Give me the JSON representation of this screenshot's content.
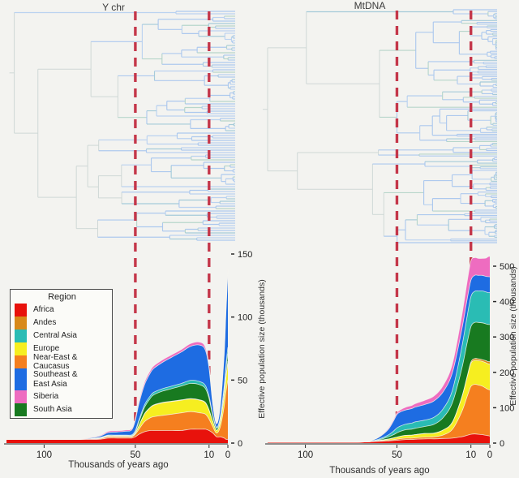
{
  "figure": {
    "panels": [
      {
        "title": "Y chr"
      },
      {
        "title": "MtDNA"
      }
    ]
  },
  "legend": {
    "title": "Region",
    "items": [
      {
        "label": "Africa",
        "color": "#e8120c"
      },
      {
        "label": "Andes",
        "color": "#d8891a"
      },
      {
        "label": "Central Asia",
        "color": "#2abcb4"
      },
      {
        "label": "Europe",
        "color": "#f6ee20"
      },
      {
        "label": "Near-East & Caucasus",
        "color": "#f57f1f"
      },
      {
        "label": "Southeast &\nEast Asia",
        "color": "#1e6ce2"
      },
      {
        "label": "Siberia",
        "color": "#ee6cc0"
      },
      {
        "label": "South Asia",
        "color": "#187a20"
      }
    ]
  },
  "annotations": {
    "dashed_lines_kya": [
      50,
      10
    ],
    "dashed_line_color": "#c4374a"
  },
  "tree_style": {
    "branch_colors": [
      "#a8c6ee",
      "#b6d0f0",
      "#a0c8d8",
      "#b2d4c8"
    ],
    "deep_branch_color": "#ccd6d4"
  },
  "chart_data": [
    {
      "type": "area",
      "title": "Y chr",
      "xlabel": "Thousands of years ago",
      "ylabel": "Effective population size (thousands)",
      "x_axis_reversed": true,
      "xlim": [
        140,
        0
      ],
      "ylim": [
        0,
        150
      ],
      "xticks": [
        100,
        50,
        10,
        0
      ],
      "yticks": [
        0,
        50,
        100,
        150
      ],
      "x": [
        140,
        120,
        100,
        90,
        80,
        70,
        65,
        60,
        55,
        52,
        50,
        48,
        45,
        42,
        40,
        35,
        30,
        25,
        20,
        15,
        12,
        10,
        8,
        6,
        4,
        2,
        1,
        0
      ],
      "series": [
        {
          "name": "Africa",
          "values": [
            3,
            3,
            3,
            3,
            3,
            3,
            4,
            4,
            4,
            4,
            5,
            7,
            9,
            10,
            10,
            10,
            10,
            10,
            11,
            11,
            11,
            10,
            8,
            5,
            5,
            4,
            3,
            3
          ]
        },
        {
          "name": "Near-East & Caucasus",
          "values": [
            0,
            0,
            0,
            0,
            0,
            0.5,
            1,
            1,
            1,
            1,
            2,
            4,
            8,
            10,
            11,
            12,
            13,
            14,
            14,
            13,
            12,
            9,
            5,
            3,
            8,
            25,
            38,
            47
          ]
        },
        {
          "name": "Europe",
          "values": [
            0,
            0,
            0,
            0,
            0,
            0.3,
            0.5,
            0.5,
            0.5,
            0.5,
            1,
            3,
            6,
            8,
            9,
            10,
            10,
            10,
            10,
            10,
            9,
            7,
            4,
            2,
            4,
            8,
            11,
            13
          ]
        },
        {
          "name": "Andes",
          "values": [
            0,
            0,
            0,
            0,
            0,
            0,
            0,
            0,
            0,
            0,
            0,
            0,
            0.3,
            0.3,
            0.3,
            0.3,
            0.3,
            0.3,
            0.3,
            0.3,
            0.3,
            0.3,
            0.2,
            0.2,
            0.5,
            1,
            1.5,
            2
          ]
        },
        {
          "name": "South Asia",
          "values": [
            0,
            0,
            0,
            0,
            0,
            0.3,
            0.5,
            0.5,
            0.5,
            0.5,
            1,
            3,
            5,
            7,
            8,
            9,
            10,
            11,
            12,
            12,
            11,
            9,
            4,
            1.5,
            2,
            4,
            5,
            6
          ]
        },
        {
          "name": "Central Asia",
          "values": [
            0,
            0,
            0,
            0,
            0,
            0.2,
            0.3,
            0.3,
            0.4,
            0.5,
            1,
            1.5,
            2,
            2,
            2,
            2,
            2,
            2,
            2.5,
            2.5,
            2.5,
            2,
            1.5,
            1,
            1.5,
            3,
            4,
            5
          ]
        },
        {
          "name": "Southeast & East Asia",
          "values": [
            0,
            0,
            0,
            0,
            0.3,
            1,
            2,
            2.5,
            3,
            4,
            8,
            13,
            16,
            18,
            19,
            21,
            23,
            25,
            27,
            29,
            28,
            22,
            8,
            2.5,
            9,
            25,
            42,
            60
          ]
        },
        {
          "name": "Siberia",
          "values": [
            0,
            0,
            0,
            0,
            0.2,
            0.5,
            1,
            1,
            1,
            1,
            1.5,
            2,
            2,
            2,
            2,
            2,
            2,
            2,
            2.2,
            2.3,
            2.3,
            2,
            1,
            0.5,
            0.8,
            1.5,
            2,
            2
          ]
        }
      ]
    },
    {
      "type": "area",
      "title": "MtDNA",
      "xlabel": "Thousands of years ago",
      "ylabel": "Effective population size (thousands)",
      "x_axis_reversed": true,
      "xlim": [
        140,
        0
      ],
      "ylim": [
        0,
        530
      ],
      "xticks": [
        100,
        50,
        10,
        0
      ],
      "yticks": [
        0,
        100,
        200,
        300,
        400,
        500
      ],
      "x": [
        140,
        120,
        100,
        90,
        80,
        70,
        65,
        60,
        55,
        52,
        50,
        48,
        45,
        42,
        40,
        35,
        30,
        25,
        20,
        15,
        12,
        10,
        8,
        6,
        4,
        2,
        1,
        0
      ],
      "series": [
        {
          "name": "Africa",
          "values": [
            2,
            2,
            2,
            2,
            2,
            3,
            4,
            5,
            6,
            7,
            8,
            9,
            10,
            10,
            11,
            12,
            12,
            13,
            14,
            18,
            22,
            25,
            26,
            25,
            24,
            22,
            21,
            20
          ]
        },
        {
          "name": "Near-East & Caucasus",
          "values": [
            0,
            0,
            0,
            0,
            0,
            0,
            0,
            1,
            2,
            2.5,
            3,
            3.5,
            4,
            4,
            4,
            5,
            6,
            10,
            25,
            70,
            110,
            135,
            140,
            139,
            137,
            133,
            131,
            130
          ]
        },
        {
          "name": "Europe",
          "values": [
            0,
            0,
            0,
            0,
            0,
            0,
            0,
            1,
            3,
            5,
            6,
            7,
            8,
            8.5,
            9,
            10,
            10,
            14,
            20,
            40,
            55,
            65,
            68,
            69,
            70,
            72,
            72,
            73
          ]
        },
        {
          "name": "Andes",
          "values": [
            0,
            0,
            0,
            0,
            0,
            0,
            0,
            0,
            0,
            0,
            0,
            0,
            0,
            0,
            0,
            0,
            0,
            0,
            0.5,
            1,
            2,
            4,
            5,
            5,
            5,
            6,
            6.5,
            7
          ]
        },
        {
          "name": "South Asia",
          "values": [
            0,
            0,
            0,
            0,
            0,
            0,
            0.5,
            2,
            6,
            9,
            12,
            14,
            16,
            17,
            18,
            20,
            25,
            35,
            55,
            80,
            95,
            100,
            102,
            103,
            104,
            104,
            105,
            105
          ]
        },
        {
          "name": "Central Asia",
          "values": [
            0,
            0,
            0,
            0,
            0,
            0,
            0.5,
            2,
            5,
            10,
            14,
            15,
            16,
            17,
            18,
            18,
            20,
            25,
            35,
            60,
            75,
            85,
            88,
            89,
            90,
            90,
            90,
            90
          ]
        },
        {
          "name": "Southeast & East Asia",
          "values": [
            0,
            0,
            0,
            0,
            0,
            0,
            1,
            5,
            15,
            28,
            38,
            40,
            40,
            41,
            42,
            44,
            46,
            48,
            50,
            50,
            48,
            46,
            45,
            44,
            44,
            44,
            45,
            45
          ]
        },
        {
          "name": "Siberia",
          "values": [
            0,
            0,
            0,
            0,
            0,
            0,
            0,
            1,
            3,
            4,
            5,
            6,
            8,
            9,
            10,
            12,
            14,
            18,
            25,
            40,
            50,
            55,
            50,
            48,
            48,
            52,
            56,
            58
          ]
        }
      ]
    }
  ]
}
